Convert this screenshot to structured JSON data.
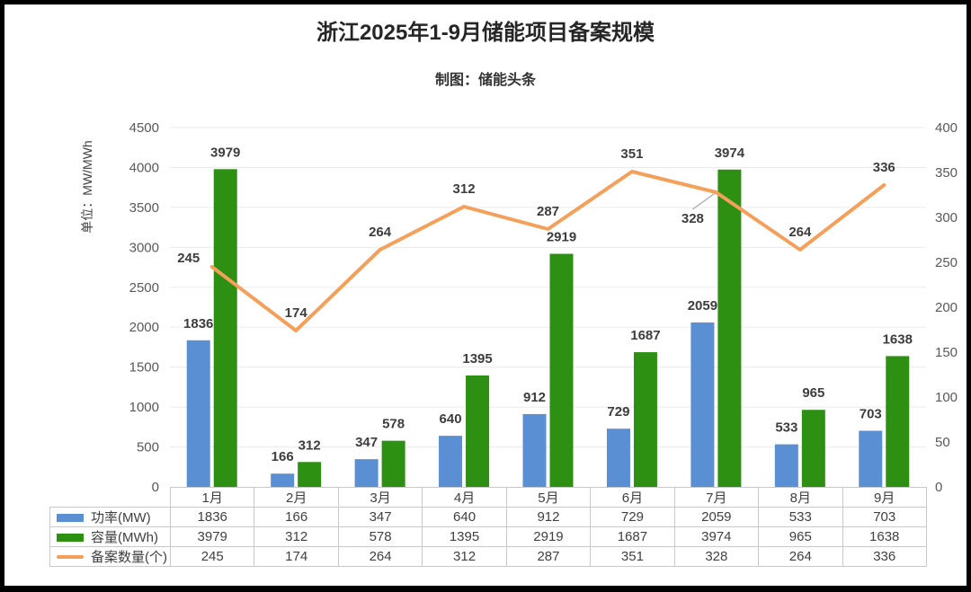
{
  "frame": {
    "background": "#ffffff",
    "border_color": "#000000"
  },
  "header": {
    "title": "浙江2025年1-9月储能项目备案规模",
    "subtitle": "制图：储能头条"
  },
  "chart_data": {
    "type": "combo-bar-line",
    "title": "浙江2025年1-9月储能项目备案规模",
    "subtitle": "制图：储能头条",
    "categories": [
      "1月",
      "2月",
      "3月",
      "4月",
      "5月",
      "6月",
      "7月",
      "8月",
      "9月"
    ],
    "series": [
      {
        "key": "power",
        "name": "功率(MW)",
        "type": "bar",
        "axis": "left",
        "color": "#5B8FD4",
        "values": [
          1836,
          166,
          347,
          640,
          912,
          729,
          2059,
          533,
          703
        ]
      },
      {
        "key": "capacity",
        "name": "容量(MWh)",
        "type": "bar",
        "axis": "left",
        "color": "#2E9013",
        "values": [
          3979,
          312,
          578,
          1395,
          2919,
          1687,
          3974,
          965,
          1638
        ]
      },
      {
        "key": "filings",
        "name": "备案数量(个)",
        "type": "line",
        "axis": "right",
        "color": "#F5A05A",
        "values": [
          245,
          174,
          264,
          312,
          287,
          351,
          328,
          264,
          336
        ]
      }
    ],
    "left_axis": {
      "title": "单位：MW/MWh",
      "min": 0,
      "max": 4500,
      "step": 500,
      "ticks": [
        0,
        500,
        1000,
        1500,
        2000,
        2500,
        3000,
        3500,
        4000,
        4500
      ]
    },
    "right_axis": {
      "min": 0,
      "max": 400,
      "step": 50,
      "ticks": [
        0,
        50,
        100,
        150,
        200,
        250,
        300,
        350,
        400
      ]
    },
    "grid": true,
    "data_labels": true,
    "legend_position": "table-left"
  },
  "colors": {
    "gridline": "#ebebeb",
    "table_border": "#c9c9c9",
    "tick_text": "#595959",
    "label_text": "#3d3d3d",
    "leader_line": "#a8a8a8"
  }
}
